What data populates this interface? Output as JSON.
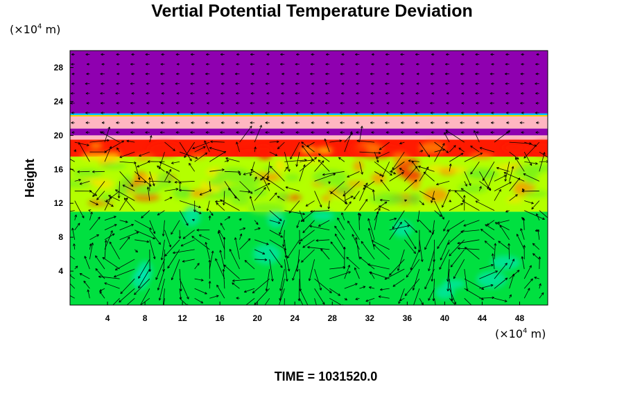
{
  "chart_data": {
    "type": "heatmap",
    "title": "Vertial Potential Temperature Deviation",
    "ylabel": "Height",
    "xlabel": "",
    "x_unit": {
      "prefix": "(×10",
      "exponent": "4",
      "suffix": " m)"
    },
    "y_unit": {
      "prefix": "(×10",
      "exponent": "4",
      "suffix": " m)"
    },
    "x_ticks": [
      4,
      8,
      12,
      16,
      20,
      24,
      28,
      32,
      36,
      40,
      44,
      48
    ],
    "y_ticks": [
      4,
      8,
      12,
      16,
      20,
      24,
      28
    ],
    "xlim": [
      0,
      51
    ],
    "ylim": [
      0,
      30
    ],
    "has_vector_field": true,
    "colors": {
      "top_layer": "#8f00b0",
      "pink_band": "#ffb6c1",
      "purple_band": "#8f00b0",
      "red": "#ff1a00",
      "orange": "#ff8c00",
      "yellow_green": "#b4ff00",
      "green": "#00e040",
      "cyan": "#00e8c8"
    },
    "layers": [
      {
        "name": "upper",
        "y_range": [
          22.4,
          30
        ],
        "color": "top_layer"
      },
      {
        "name": "pink",
        "y_range": [
          20.8,
          22.4
        ],
        "color": "pink_band"
      },
      {
        "name": "thin-purple",
        "y_range": [
          20.0,
          20.8
        ],
        "color": "purple_band"
      },
      {
        "name": "pink-lower",
        "y_range": [
          19.5,
          20.0
        ],
        "color": "pink_band"
      },
      {
        "name": "red-band",
        "y_range": [
          17.5,
          19.5
        ],
        "color": "red"
      },
      {
        "name": "mixed",
        "y_range": [
          11.0,
          17.5
        ],
        "color": "yellow_green"
      },
      {
        "name": "lower",
        "y_range": [
          0,
          11.0
        ],
        "color": "green"
      }
    ]
  },
  "footer": {
    "time_label": "TIME = 1031520.0"
  }
}
